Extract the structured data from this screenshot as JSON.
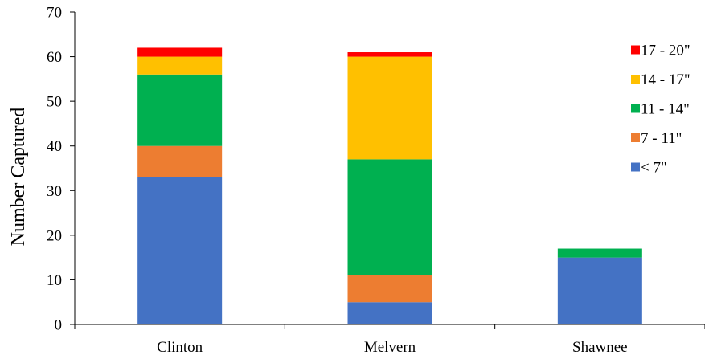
{
  "chart_data": {
    "type": "bar",
    "stacked": true,
    "title": "",
    "xlabel": "",
    "ylabel": "Number Captured",
    "ylim": [
      0,
      70
    ],
    "yticks": [
      0,
      10,
      20,
      30,
      40,
      50,
      60,
      70
    ],
    "grid": false,
    "legend_position": "right",
    "categories": [
      "Clinton",
      "Melvern",
      "Shawnee"
    ],
    "series": [
      {
        "name": "< 7\"",
        "color": "#4472C4",
        "values": [
          33,
          5,
          15
        ]
      },
      {
        "name": "7 - 11\"",
        "color": "#ED7D31",
        "values": [
          7,
          6,
          0
        ]
      },
      {
        "name": "11 - 14\"",
        "color": "#00B050",
        "values": [
          16,
          26,
          2
        ]
      },
      {
        "name": "14 - 17\"",
        "color": "#FFC000",
        "values": [
          4,
          23,
          0
        ]
      },
      {
        "name": "17 - 20\"",
        "color": "#FF0000",
        "values": [
          2,
          1,
          0
        ]
      }
    ]
  }
}
